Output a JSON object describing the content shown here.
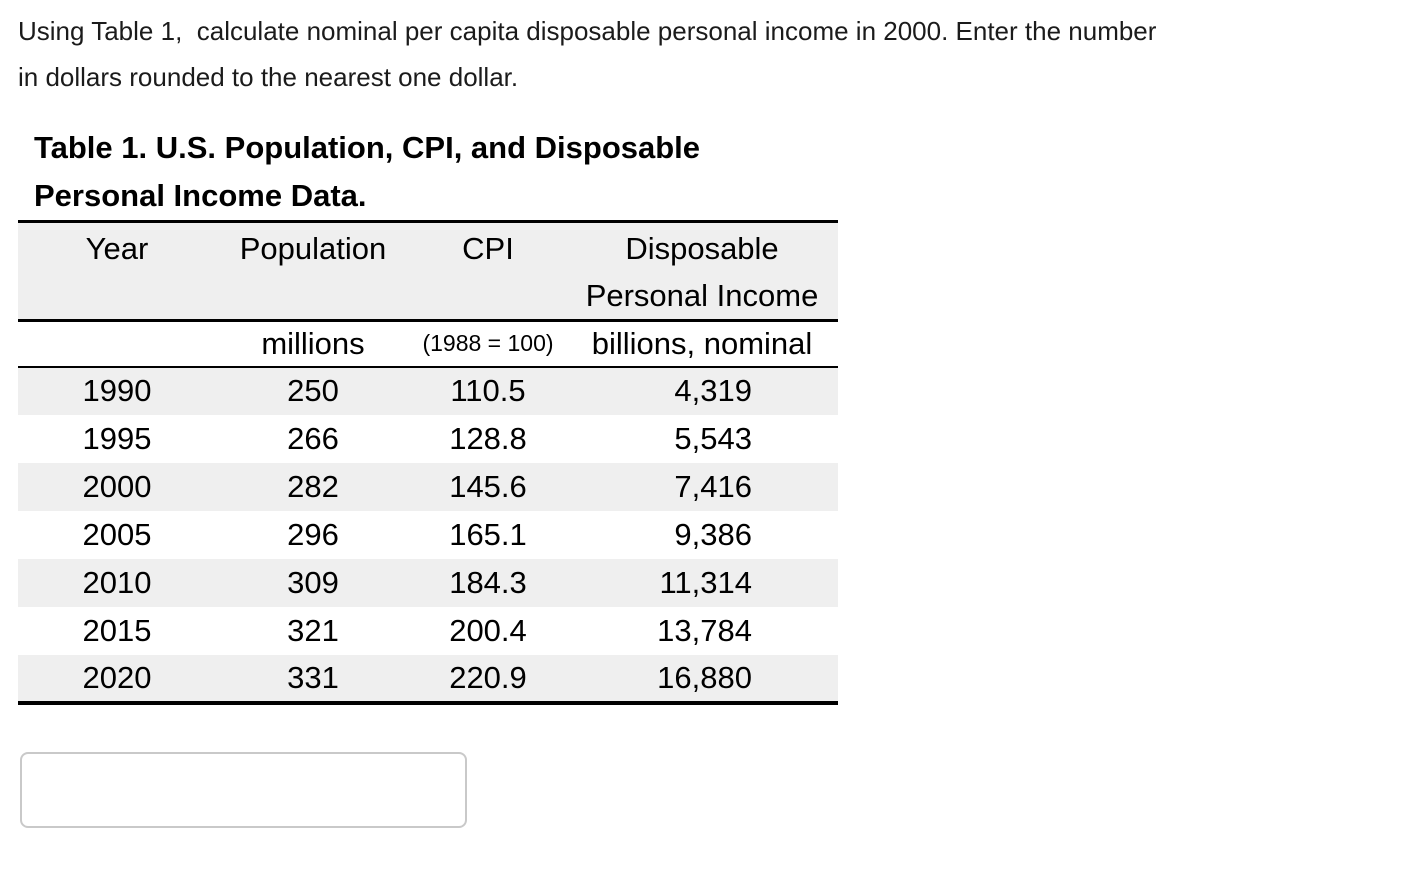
{
  "question": {
    "text": "Using Table 1,  calculate nominal per capita disposable personal income in 2000. Enter the number\nin dollars rounded to the nearest one dollar."
  },
  "table": {
    "title": "Table 1. U.S. Population, CPI, and Disposable\nPersonal Income Data.",
    "headers": [
      "Year",
      "Population",
      "CPI",
      "Disposable\nPersonal Income"
    ],
    "units": [
      "",
      "millions",
      "(1988 = 100)",
      "billions, nominal"
    ],
    "rows": [
      [
        "1990",
        "250",
        "110.5",
        "4,319"
      ],
      [
        "1995",
        "266",
        "128.8",
        "5,543"
      ],
      [
        "2000",
        "282",
        "145.6",
        "7,416"
      ],
      [
        "2005",
        "296",
        "165.1",
        "9,386"
      ],
      [
        "2010",
        "309",
        "184.3",
        "11,314"
      ],
      [
        "2015",
        "321",
        "200.4",
        "13,784"
      ],
      [
        "2020",
        "331",
        "220.9",
        "16,880"
      ]
    ]
  },
  "answer": {
    "value": ""
  },
  "colors": {
    "stripe": "#efefef",
    "table_border": "#000000",
    "input_border": "#c9c9c9"
  }
}
